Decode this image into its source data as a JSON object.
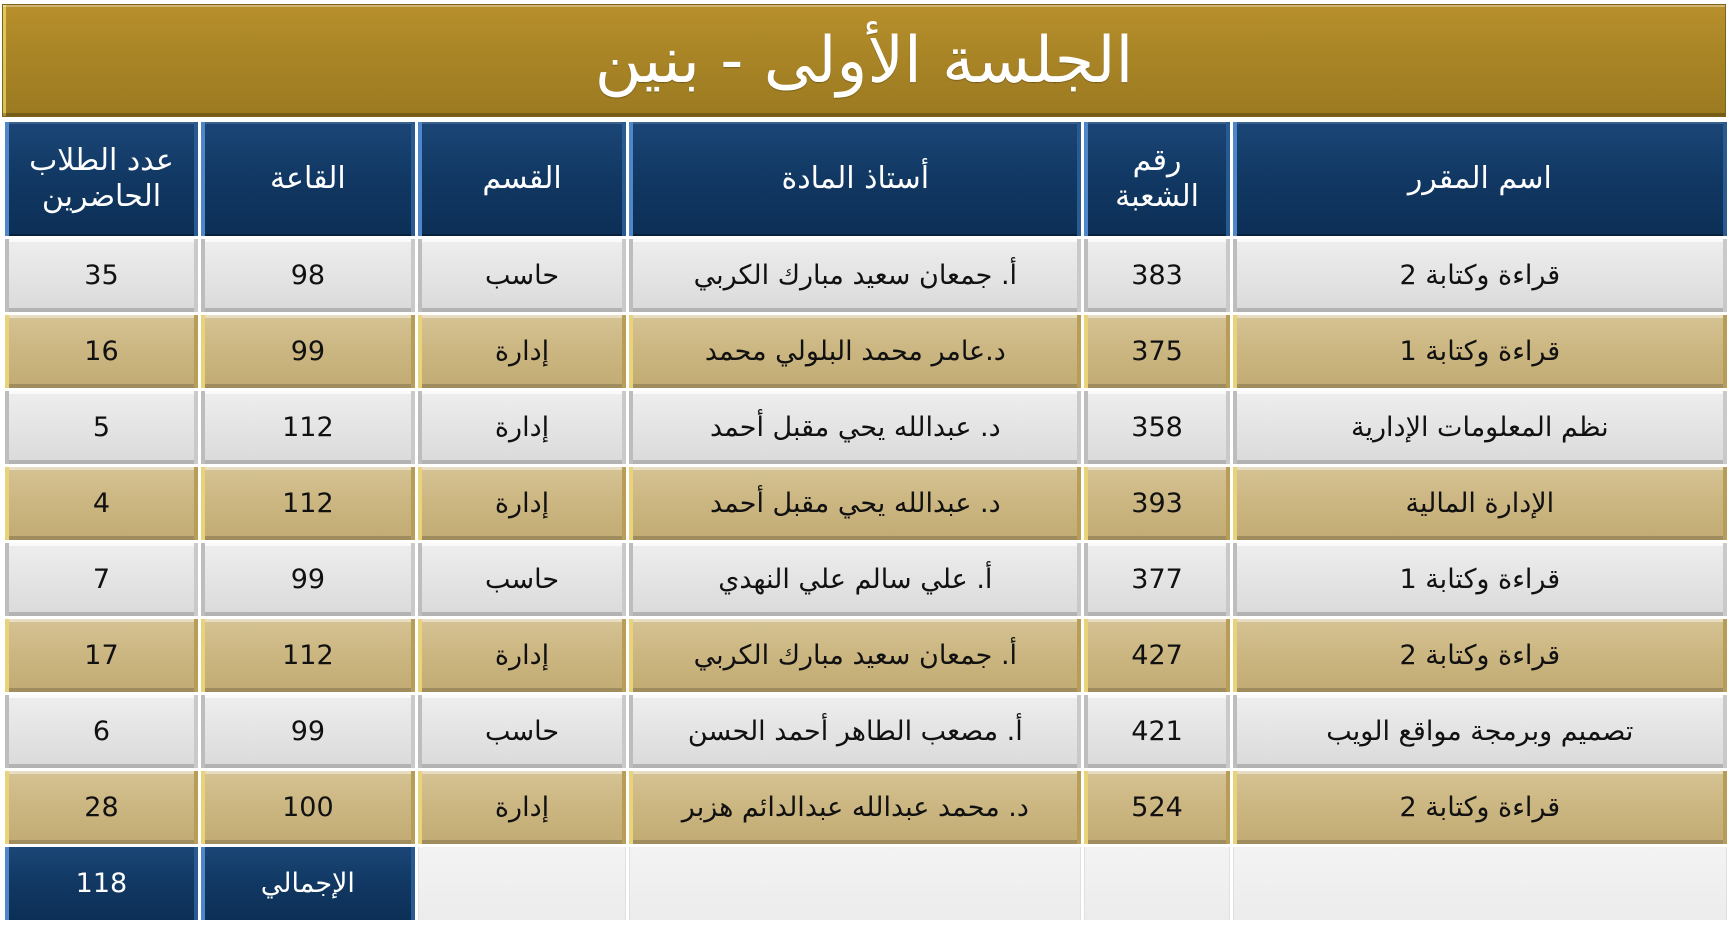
{
  "title": "الجلسة الأولى - بنين",
  "headers": {
    "course": "اسم المقرر",
    "section": "رقم الشعبة",
    "instructor": "أستاذ المادة",
    "department": "القسم",
    "hall": "القاعة",
    "attendance": "عدد الطلاب الحاضرين"
  },
  "rows": [
    {
      "course": "قراءة وكتابة 2",
      "section": "383",
      "instructor": "أ. جمعان سعيد مبارك الكربي",
      "department": "حاسب",
      "hall": "98",
      "attendance": "35"
    },
    {
      "course": "قراءة وكتابة 1",
      "section": "375",
      "instructor": "د.عامر محمد البلولي محمد",
      "department": "إدارة",
      "hall": "99",
      "attendance": "16"
    },
    {
      "course": "نظم المعلومات الإدارية",
      "section": "358",
      "instructor": "د. عبدالله يحي مقبل أحمد",
      "department": "إدارة",
      "hall": "112",
      "attendance": "5"
    },
    {
      "course": "الإدارة المالية",
      "section": "393",
      "instructor": "د. عبدالله يحي مقبل أحمد",
      "department": "إدارة",
      "hall": "112",
      "attendance": "4"
    },
    {
      "course": "قراءة وكتابة 1",
      "section": "377",
      "instructor": "أ. علي سالم علي النهدي",
      "department": "حاسب",
      "hall": "99",
      "attendance": "7"
    },
    {
      "course": "قراءة وكتابة 2",
      "section": "427",
      "instructor": "أ. جمعان سعيد مبارك الكربي",
      "department": "إدارة",
      "hall": "112",
      "attendance": "17"
    },
    {
      "course": "تصميم وبرمجة مواقع الويب",
      "section": "421",
      "instructor": "أ. مصعب الطاهر أحمد الحسن",
      "department": "حاسب",
      "hall": "99",
      "attendance": "6"
    },
    {
      "course": "قراءة وكتابة 2",
      "section": "524",
      "instructor": "د. محمد عبدالله عبدالدائم هزبر",
      "department": "إدارة",
      "hall": "100",
      "attendance": "28"
    }
  ],
  "total": {
    "label": "الإجمالي",
    "value": "118"
  },
  "colors": {
    "title_gold": "#a98526",
    "header_navy": "#113863",
    "row_light": "#e4e4e4",
    "row_gold": "#cbb681"
  }
}
